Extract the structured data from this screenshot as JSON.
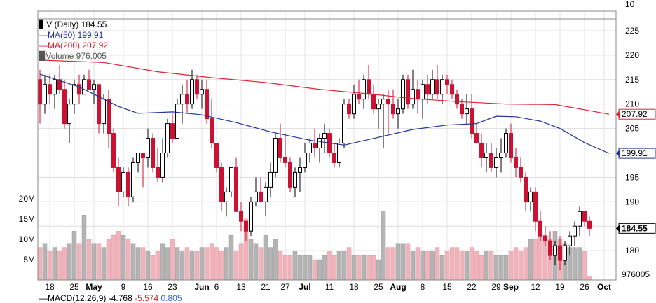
{
  "legend": {
    "symbol": "V (Daily) 184.55",
    "ma50": "MA(50) 199.91",
    "ma200": "MA(200) 207.92",
    "volume": "Volume 976,005"
  },
  "colors": {
    "up": "#000000",
    "down": "#cc1133",
    "up_volume": "#b4b4b4",
    "down_volume": "#f0b4bc",
    "ma50": "#22339a",
    "ma200": "#dd2233",
    "last_price_box": "#cc1133"
  },
  "price_badges": {
    "ma200": "207.92",
    "ma50": "199.91",
    "last": "184.55",
    "volume": "976005"
  },
  "macd_label": {
    "name": "MACD(12,26,9)",
    "macd": "-4.768",
    "signal": "-5.574",
    "histogram": "0.805"
  },
  "chart_data": {
    "type": "candlestick",
    "price_axis": {
      "ylim": [
        174,
        227
      ],
      "ticks": [
        180,
        185,
        190,
        195,
        200,
        205,
        210,
        215,
        220,
        225
      ],
      "tick_labels": [
        "180",
        "185",
        "190",
        "195",
        "200",
        "205",
        "210",
        "215",
        "220",
        "225"
      ]
    },
    "volume_axis": {
      "ticks": [
        5,
        10,
        15,
        20
      ],
      "tick_labels": [
        "5M",
        "10M",
        "15M",
        "20M"
      ]
    },
    "top_axis_label": "10",
    "x_ticks": [
      {
        "label": "18",
        "bold": false,
        "i": 2
      },
      {
        "label": "25",
        "bold": false,
        "i": 7
      },
      {
        "label": "May",
        "bold": true,
        "i": 11
      },
      {
        "label": "9",
        "bold": false,
        "i": 17
      },
      {
        "label": "16",
        "bold": false,
        "i": 22
      },
      {
        "label": "23",
        "bold": false,
        "i": 27
      },
      {
        "label": "Jun",
        "bold": true,
        "i": 33
      },
      {
        "label": "6",
        "bold": false,
        "i": 36
      },
      {
        "label": "13",
        "bold": false,
        "i": 41
      },
      {
        "label": "21",
        "bold": false,
        "i": 46
      },
      {
        "label": "27",
        "bold": false,
        "i": 50
      },
      {
        "label": "Jul",
        "bold": true,
        "i": 54
      },
      {
        "label": "11",
        "bold": false,
        "i": 59
      },
      {
        "label": "18",
        "bold": false,
        "i": 64
      },
      {
        "label": "25",
        "bold": false,
        "i": 69
      },
      {
        "label": "Aug",
        "bold": true,
        "i": 73
      },
      {
        "label": "8",
        "bold": false,
        "i": 78
      },
      {
        "label": "15",
        "bold": false,
        "i": 83
      },
      {
        "label": "22",
        "bold": false,
        "i": 88
      },
      {
        "label": "29",
        "bold": false,
        "i": 93
      },
      {
        "label": "Sep",
        "bold": true,
        "i": 96
      },
      {
        "label": "12",
        "bold": false,
        "i": 101
      },
      {
        "label": "19",
        "bold": false,
        "i": 106
      },
      {
        "label": "26",
        "bold": false,
        "i": 111
      },
      {
        "label": "Oct",
        "bold": true,
        "i": 115
      }
    ],
    "candles": [
      [
        215,
        217,
        206,
        210,
        8
      ],
      [
        210,
        216,
        208,
        214,
        9
      ],
      [
        214,
        216,
        210,
        212,
        7
      ],
      [
        212,
        216,
        209,
        215,
        8
      ],
      [
        215,
        218,
        212,
        213,
        7
      ],
      [
        213,
        215,
        205,
        206,
        8
      ],
      [
        206,
        211,
        202,
        210,
        9
      ],
      [
        210,
        215,
        208,
        214,
        12
      ],
      [
        214,
        216,
        210,
        212,
        9
      ],
      [
        212,
        216,
        212,
        215,
        16
      ],
      [
        215,
        217,
        213,
        213,
        10
      ],
      [
        213,
        215,
        210,
        214,
        9
      ],
      [
        214,
        214,
        204,
        206,
        9
      ],
      [
        206,
        212,
        204,
        211,
        8
      ],
      [
        211,
        213,
        201,
        204,
        10
      ],
      [
        204,
        205,
        196,
        197,
        11
      ],
      [
        197,
        199,
        189,
        192,
        12
      ],
      [
        192,
        197,
        191,
        196,
        11
      ],
      [
        196,
        197,
        189,
        191,
        10
      ],
      [
        191,
        199,
        190,
        198,
        9
      ],
      [
        198,
        200,
        196,
        200,
        8
      ],
      [
        200,
        200,
        193,
        199,
        8
      ],
      [
        199,
        205,
        197,
        203,
        7
      ],
      [
        203,
        204,
        196,
        197,
        6
      ],
      [
        197,
        201,
        194,
        195,
        7
      ],
      [
        195,
        203,
        194,
        200,
        9
      ],
      [
        200,
        207,
        199,
        206,
        8
      ],
      [
        206,
        208,
        202,
        203,
        10
      ],
      [
        203,
        211,
        203,
        210,
        8
      ],
      [
        210,
        214,
        206,
        212,
        7
      ],
      [
        212,
        215,
        208,
        210,
        8
      ],
      [
        210,
        217,
        209,
        215,
        7
      ],
      [
        215,
        216,
        211,
        212,
        7
      ],
      [
        212,
        215,
        209,
        213,
        8
      ],
      [
        213,
        215,
        206,
        207,
        8
      ],
      [
        207,
        211,
        201,
        202,
        9
      ],
      [
        202,
        202,
        196,
        197,
        8
      ],
      [
        197,
        198,
        188,
        190,
        7
      ],
      [
        190,
        193,
        187,
        192,
        8
      ],
      [
        192,
        197,
        191,
        197,
        11
      ],
      [
        197,
        199,
        188,
        188,
        7
      ],
      [
        188,
        190,
        184,
        186,
        9
      ],
      [
        186,
        186,
        182,
        184,
        15
      ],
      [
        184,
        191,
        183,
        190,
        10
      ],
      [
        190,
        195,
        189,
        192,
        9
      ],
      [
        192,
        195,
        190,
        190,
        8
      ],
      [
        190,
        194,
        187,
        193,
        11
      ],
      [
        193,
        198,
        191,
        196,
        8
      ],
      [
        196,
        204,
        195,
        203,
        10
      ],
      [
        203,
        206,
        198,
        199,
        7
      ],
      [
        199,
        204,
        197,
        198,
        6
      ],
      [
        198,
        199,
        192,
        193,
        6
      ],
      [
        193,
        197,
        191,
        196,
        7
      ],
      [
        196,
        199,
        192,
        197,
        6
      ],
      [
        197,
        202,
        196,
        200,
        6
      ],
      [
        200,
        203,
        198,
        202,
        6
      ],
      [
        202,
        205,
        199,
        201,
        5
      ],
      [
        201,
        204,
        198,
        203,
        5
      ],
      [
        203,
        206,
        200,
        204,
        6
      ],
      [
        204,
        205,
        199,
        200,
        7
      ],
      [
        200,
        202,
        197,
        198,
        6
      ],
      [
        198,
        203,
        197,
        202,
        7
      ],
      [
        202,
        211,
        201,
        210,
        7
      ],
      [
        210,
        211,
        207,
        208,
        8
      ],
      [
        208,
        214,
        207,
        212,
        6
      ],
      [
        212,
        215,
        210,
        211,
        6
      ],
      [
        211,
        216,
        209,
        215,
        6
      ],
      [
        215,
        218,
        211,
        212,
        6
      ],
      [
        212,
        214,
        208,
        209,
        6
      ],
      [
        209,
        211,
        205,
        210,
        5
      ],
      [
        210,
        212,
        201,
        211,
        17
      ],
      [
        211,
        213,
        204,
        210,
        8
      ],
      [
        210,
        213,
        207,
        208,
        8
      ],
      [
        208,
        211,
        205,
        209,
        9
      ],
      [
        209,
        216,
        208,
        215,
        9
      ],
      [
        215,
        216,
        209,
        210,
        9
      ],
      [
        210,
        217,
        209,
        213,
        7
      ],
      [
        213,
        215,
        208,
        211,
        8
      ],
      [
        211,
        215,
        207,
        214,
        7
      ],
      [
        214,
        216,
        210,
        212,
        7
      ],
      [
        212,
        217,
        211,
        215,
        7
      ],
      [
        215,
        218,
        211,
        212,
        8
      ],
      [
        212,
        216,
        210,
        215,
        6
      ],
      [
        215,
        216,
        212,
        214,
        7
      ],
      [
        214,
        215,
        211,
        212,
        8
      ],
      [
        212,
        213,
        209,
        210,
        8
      ],
      [
        210,
        211,
        207,
        208,
        7
      ],
      [
        208,
        212,
        206,
        209,
        7
      ],
      [
        209,
        212,
        203,
        204,
        8
      ],
      [
        204,
        206,
        202,
        202,
        7
      ],
      [
        202,
        204,
        197,
        199,
        6
      ],
      [
        199,
        202,
        196,
        200,
        7
      ],
      [
        200,
        202,
        196,
        197,
        7
      ],
      [
        197,
        201,
        195,
        199,
        6
      ],
      [
        199,
        203,
        196,
        200,
        6
      ],
      [
        200,
        205,
        199,
        204,
        6
      ],
      [
        204,
        206,
        198,
        199,
        7
      ],
      [
        199,
        201,
        195,
        197,
        8
      ],
      [
        197,
        199,
        194,
        195,
        7
      ],
      [
        195,
        196,
        188,
        190,
        8
      ],
      [
        190,
        193,
        188,
        192,
        10
      ],
      [
        192,
        193,
        184,
        186,
        10
      ],
      [
        186,
        188,
        182,
        183,
        11
      ],
      [
        183,
        185,
        181,
        182,
        11
      ],
      [
        182,
        184,
        178,
        179,
        10
      ],
      [
        179,
        182,
        177,
        181,
        12
      ],
      [
        181,
        183,
        176,
        178,
        10
      ],
      [
        178,
        182,
        177,
        181,
        9
      ],
      [
        181,
        184,
        179,
        183,
        8
      ],
      [
        183,
        186,
        181,
        185,
        8
      ],
      [
        185,
        189,
        183,
        188,
        8
      ],
      [
        188,
        188,
        185,
        186,
        7
      ],
      [
        186,
        187,
        183,
        184.55,
        1
      ]
    ],
    "ma50": [
      [
        0,
        216.1
      ],
      [
        8,
        213.5
      ],
      [
        16,
        209.5
      ],
      [
        20,
        208.1
      ],
      [
        27,
        208.4
      ],
      [
        33,
        207.8
      ],
      [
        40,
        206.2
      ],
      [
        47,
        204.3
      ],
      [
        55,
        202.6
      ],
      [
        62,
        201.6
      ],
      [
        69,
        203.2
      ],
      [
        76,
        204.8
      ],
      [
        83,
        205.7
      ],
      [
        89,
        206.0
      ],
      [
        93,
        207.5
      ],
      [
        97,
        207.4
      ],
      [
        102,
        206.5
      ],
      [
        106,
        205.0
      ],
      [
        111,
        202.1
      ],
      [
        116,
        199.91
      ]
    ],
    "ma200": [
      [
        0,
        219.0
      ],
      [
        13,
        218.5
      ],
      [
        24,
        216.6
      ],
      [
        35,
        215.4
      ],
      [
        46,
        214.4
      ],
      [
        57,
        213.0
      ],
      [
        68,
        212.0
      ],
      [
        75,
        211.2
      ],
      [
        85,
        210.5
      ],
      [
        95,
        210.0
      ],
      [
        105,
        209.9
      ],
      [
        116,
        207.92
      ]
    ]
  }
}
